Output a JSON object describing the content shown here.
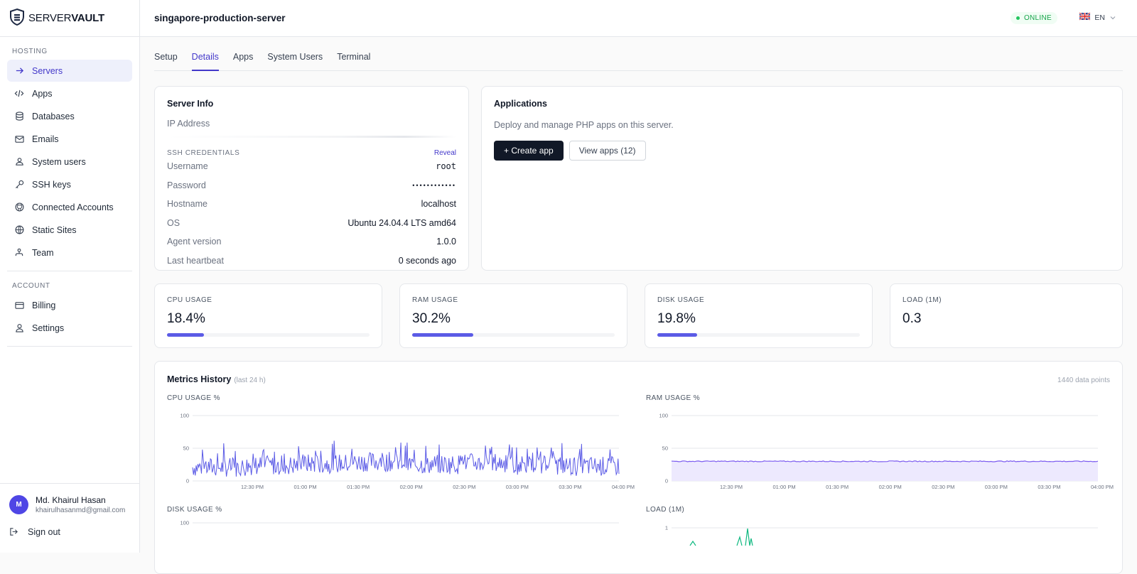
{
  "brand": {
    "part1": "SERVER",
    "part2": "VAULT"
  },
  "sidebar": {
    "hosting_label": "HOSTING",
    "hosting_items": [
      {
        "label": "Servers",
        "icon": "arrow-right-icon"
      },
      {
        "label": "Apps",
        "icon": "code-icon"
      },
      {
        "label": "Databases",
        "icon": "database-icon"
      },
      {
        "label": "Emails",
        "icon": "mail-icon"
      },
      {
        "label": "System users",
        "icon": "users-icon"
      },
      {
        "label": "SSH keys",
        "icon": "key-icon"
      },
      {
        "label": "Connected Accounts",
        "icon": "github-icon"
      },
      {
        "label": "Static Sites",
        "icon": "globe-icon"
      },
      {
        "label": "Team",
        "icon": "team-icon"
      }
    ],
    "account_label": "ACCOUNT",
    "account_items": [
      {
        "label": "Billing",
        "icon": "credit-card-icon"
      },
      {
        "label": "Settings",
        "icon": "user-icon"
      }
    ],
    "user": {
      "initial": "M",
      "name": "Md. Khairul Hasan",
      "email": "khairulhasanmd@gmail.com"
    },
    "signout": "Sign out"
  },
  "header": {
    "server_name": "singapore-production-server",
    "status": "ONLINE",
    "language": "EN"
  },
  "tabs": [
    "Setup",
    "Details",
    "Apps",
    "System Users",
    "Terminal"
  ],
  "server_info": {
    "title": "Server Info",
    "ip_label": "IP Address",
    "ssh_label": "SSH CREDENTIALS",
    "reveal": "Reveal",
    "username_label": "Username",
    "username": "root",
    "password_label": "Password",
    "password_mask": "••••••••••••",
    "hostname_label": "Hostname",
    "hostname": "localhost",
    "os_label": "OS",
    "os": "Ubuntu 24.04.4 LTS amd64",
    "agent_label": "Agent version",
    "agent": "1.0.0",
    "heartbeat_label": "Last heartbeat",
    "heartbeat": "0 seconds ago"
  },
  "applications": {
    "title": "Applications",
    "description": "Deploy and manage PHP apps on this server.",
    "create_button": "+ Create app",
    "view_button": "View apps (12)"
  },
  "stats": [
    {
      "label": "CPU USAGE",
      "value": "18.4%",
      "percent": 18.4
    },
    {
      "label": "RAM USAGE",
      "value": "30.2%",
      "percent": 30.2
    },
    {
      "label": "DISK USAGE",
      "value": "19.8%",
      "percent": 19.8
    },
    {
      "label": "LOAD (1M)",
      "value": "0.3"
    }
  ],
  "metrics": {
    "title": "Metrics History",
    "subtitle": "(last 24 h)",
    "datapoints": "1440 data points"
  },
  "colors": {
    "accent": "#4338ca",
    "cpu": "#5b5be6",
    "ram": "#7c5cf0",
    "load": "#10b981",
    "online": "#16a34a"
  },
  "chart_data": [
    {
      "type": "line",
      "title": "CPU USAGE %",
      "ylim": [
        0,
        100
      ],
      "yticks": [
        "0",
        "50",
        "100"
      ],
      "x": [
        "12:30 PM",
        "01:00 PM",
        "01:30 PM",
        "02:00 PM",
        "02:30 PM",
        "03:00 PM",
        "03:30 PM",
        "04:00 PM"
      ],
      "series": [
        {
          "values": [
            30,
            35,
            40,
            45,
            38,
            42,
            36,
            33
          ]
        }
      ]
    },
    {
      "type": "area",
      "title": "RAM USAGE %",
      "ylim": [
        0,
        100
      ],
      "yticks": [
        "0",
        "50",
        "100"
      ],
      "x": [
        "12:30 PM",
        "01:00 PM",
        "01:30 PM",
        "02:00 PM",
        "02:30 PM",
        "03:00 PM",
        "03:30 PM",
        "04:00 PM"
      ],
      "series": [
        {
          "values": [
            30,
            30,
            30,
            30,
            30,
            30,
            30,
            30
          ]
        }
      ]
    },
    {
      "type": "line",
      "title": "DISK USAGE %",
      "ylim": [
        0,
        100
      ],
      "yticks": [
        "100"
      ],
      "x": [],
      "series": []
    },
    {
      "type": "line",
      "title": "LOAD (1M)",
      "ylim": [
        0,
        1
      ],
      "yticks": [
        "1"
      ],
      "x": [],
      "series": []
    }
  ]
}
